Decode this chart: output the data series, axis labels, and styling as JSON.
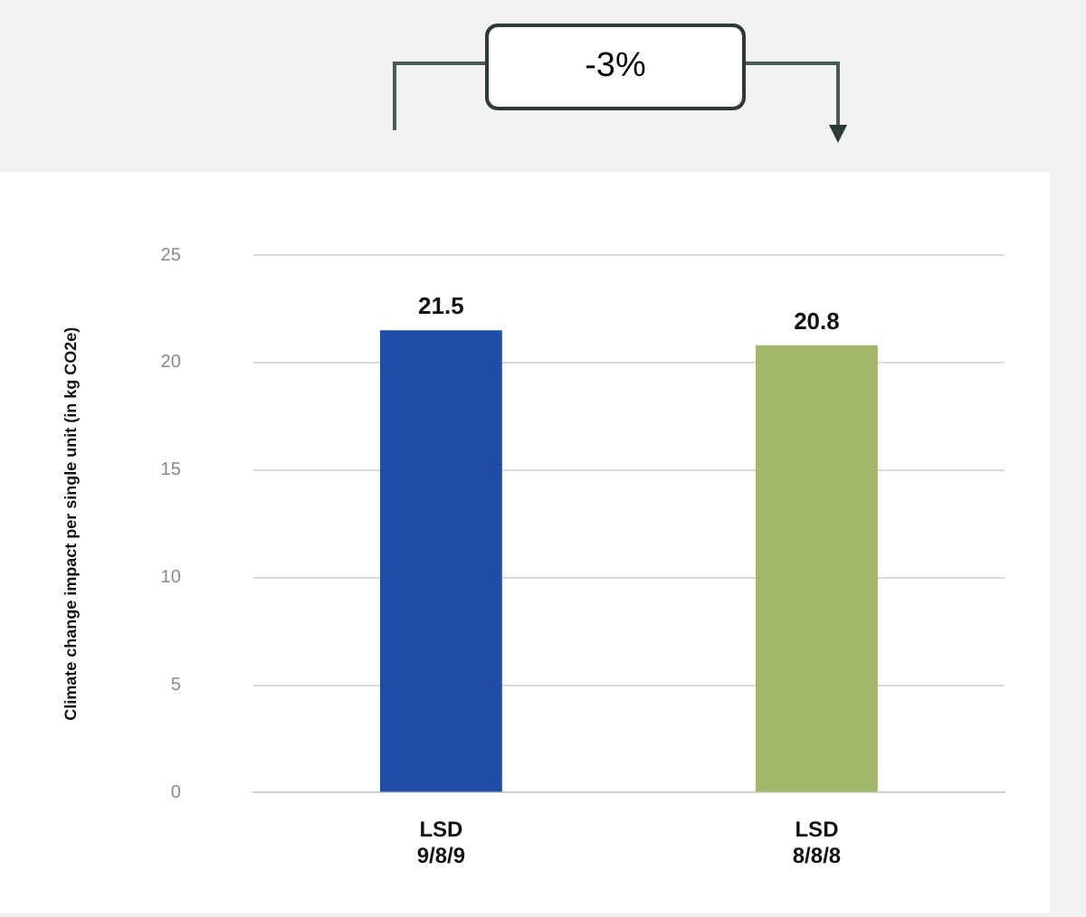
{
  "chart_data": {
    "type": "bar",
    "categories": [
      "LSD\n9/8/9",
      "LSD\n8/8/8"
    ],
    "values": [
      21.5,
      20.8
    ],
    "colors": [
      "#1f4ea8",
      "#a3b86c"
    ],
    "ylabel": "Climate change impact per single unit (in kg CO2e)",
    "ylim": [
      0,
      25
    ],
    "yticks": [
      0,
      5,
      10,
      15,
      20,
      25
    ],
    "grid": "y",
    "legend": false,
    "data_labels": true,
    "annotations": [
      "-3%"
    ]
  }
}
